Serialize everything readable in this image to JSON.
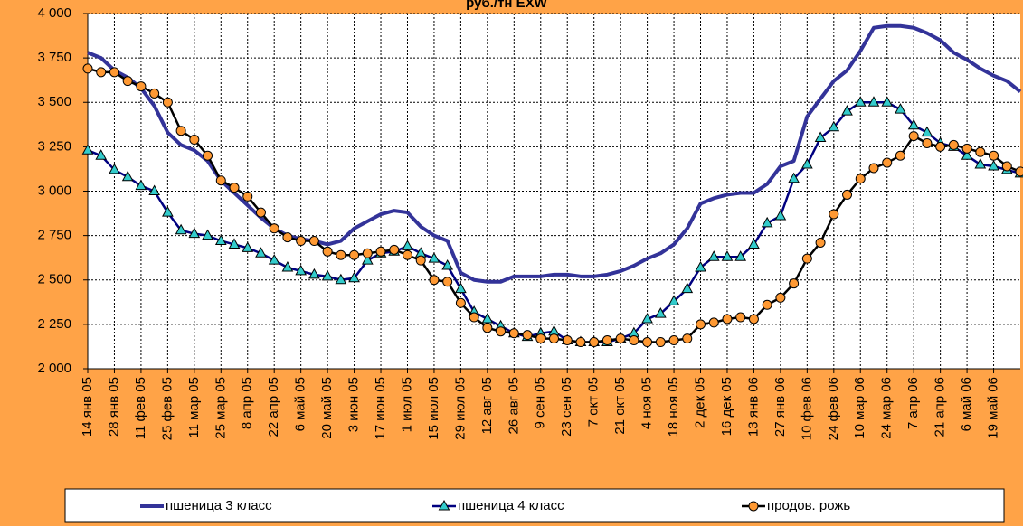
{
  "chart_data": {
    "type": "line",
    "title": "руб./тн EXW",
    "categories": [
      "14 янв 05",
      null,
      "28 янв 05",
      null,
      "11 фев 05",
      null,
      "25 фев 05",
      null,
      "11 мар 05",
      null,
      "25 мар 05",
      null,
      "8 апр 05",
      null,
      "22 апр 05",
      null,
      "6 май 05",
      null,
      "20 май 05",
      null,
      "3 июн 05",
      null,
      "17 июн 05",
      null,
      "1 июл 05",
      null,
      "15 июл 05",
      null,
      "29 июл 05",
      null,
      "12 авг 05",
      null,
      "26 авг 05",
      null,
      "9 сен 05",
      null,
      "23 сен 05",
      null,
      "7 окт 05",
      null,
      "21 окт 05",
      null,
      "4 ноя 05",
      null,
      "18 ноя 05",
      null,
      "2 дек 05",
      null,
      "16 дек 05",
      null,
      "13 янв 06",
      null,
      "27 янв 06",
      null,
      "10 фев 06",
      null,
      "24 фев 06",
      null,
      "10 мар 06",
      null,
      "24 мар 06",
      null,
      "7 апр 06",
      null,
      "21 апр 06",
      null,
      "6 май 06",
      null,
      "19 май 06",
      null,
      null
    ],
    "series": [
      {
        "name": "пшеница 3 класс",
        "color": "#333399",
        "marker": "none",
        "values": [
          3780,
          3750,
          3680,
          3640,
          3580,
          3480,
          3330,
          3260,
          3230,
          3170,
          3060,
          2990,
          2920,
          2850,
          2790,
          2750,
          2730,
          2720,
          2700,
          2720,
          2790,
          2830,
          2870,
          2890,
          2880,
          2800,
          2750,
          2720,
          2540,
          2500,
          2490,
          2490,
          2520,
          2520,
          2520,
          2530,
          2530,
          2520,
          2520,
          2530,
          2550,
          2580,
          2620,
          2650,
          2700,
          2790,
          2930,
          2960,
          2980,
          2990,
          2990,
          3040,
          3140,
          3170,
          3420,
          3520,
          3620,
          3680,
          3790,
          3920,
          3930,
          3930,
          3920,
          3890,
          3850,
          3780,
          3740,
          3690,
          3650,
          3620,
          3560
        ]
      },
      {
        "name": "пшеница 4 класс",
        "color": "#000080",
        "marker": "triangle",
        "marker_color": "#33CCCC",
        "values": [
          3230,
          3200,
          3120,
          3080,
          3030,
          3000,
          2880,
          2780,
          2760,
          2750,
          2720,
          2700,
          2680,
          2650,
          2610,
          2570,
          2550,
          2530,
          2520,
          2500,
          2510,
          2610,
          2650,
          2660,
          2690,
          2650,
          2620,
          2580,
          2450,
          2320,
          2280,
          2240,
          2200,
          2180,
          2200,
          2210,
          2160,
          2150,
          2150,
          2150,
          2170,
          2200,
          2280,
          2310,
          2380,
          2450,
          2570,
          2630,
          2630,
          2630,
          2700,
          2820,
          2860,
          3070,
          3150,
          3300,
          3360,
          3450,
          3500,
          3500,
          3500,
          3460,
          3370,
          3330,
          3270,
          3250,
          3200,
          3150,
          3140,
          3120,
          3100
        ]
      },
      {
        "name": "продов. рожь",
        "color": "#000000",
        "marker": "circle",
        "marker_color": "#FF9933",
        "values": [
          3690,
          3670,
          3670,
          3620,
          3590,
          3550,
          3500,
          3340,
          3290,
          3200,
          3060,
          3020,
          2970,
          2880,
          2790,
          2740,
          2720,
          2720,
          2660,
          2640,
          2640,
          2650,
          2660,
          2670,
          2640,
          2610,
          2500,
          2490,
          2370,
          2290,
          2230,
          2210,
          2200,
          2190,
          2170,
          2170,
          2160,
          2150,
          2150,
          2160,
          2170,
          2160,
          2150,
          2150,
          2160,
          2170,
          2250,
          2260,
          2280,
          2290,
          2280,
          2360,
          2400,
          2480,
          2620,
          2710,
          2870,
          2980,
          3070,
          3130,
          3160,
          3200,
          3310,
          3270,
          3250,
          3260,
          3240,
          3220,
          3200,
          3140,
          3110
        ]
      }
    ],
    "ylim": [
      2000,
      4000
    ],
    "yticks": [
      {
        "value": 2000,
        "label": "2 000"
      },
      {
        "value": 2250,
        "label": "2 250"
      },
      {
        "value": 2500,
        "label": "2 500"
      },
      {
        "value": 2750,
        "label": "2 750"
      },
      {
        "value": 3000,
        "label": "3 000"
      },
      {
        "value": 3250,
        "label": "3 250"
      },
      {
        "value": 3500,
        "label": "3 500"
      },
      {
        "value": 3750,
        "label": "3 750"
      },
      {
        "value": 4000,
        "label": "4 000"
      }
    ],
    "grid": true,
    "legend": "bottom",
    "background": "#FFA347",
    "plot_background": "#FFFFFF"
  }
}
